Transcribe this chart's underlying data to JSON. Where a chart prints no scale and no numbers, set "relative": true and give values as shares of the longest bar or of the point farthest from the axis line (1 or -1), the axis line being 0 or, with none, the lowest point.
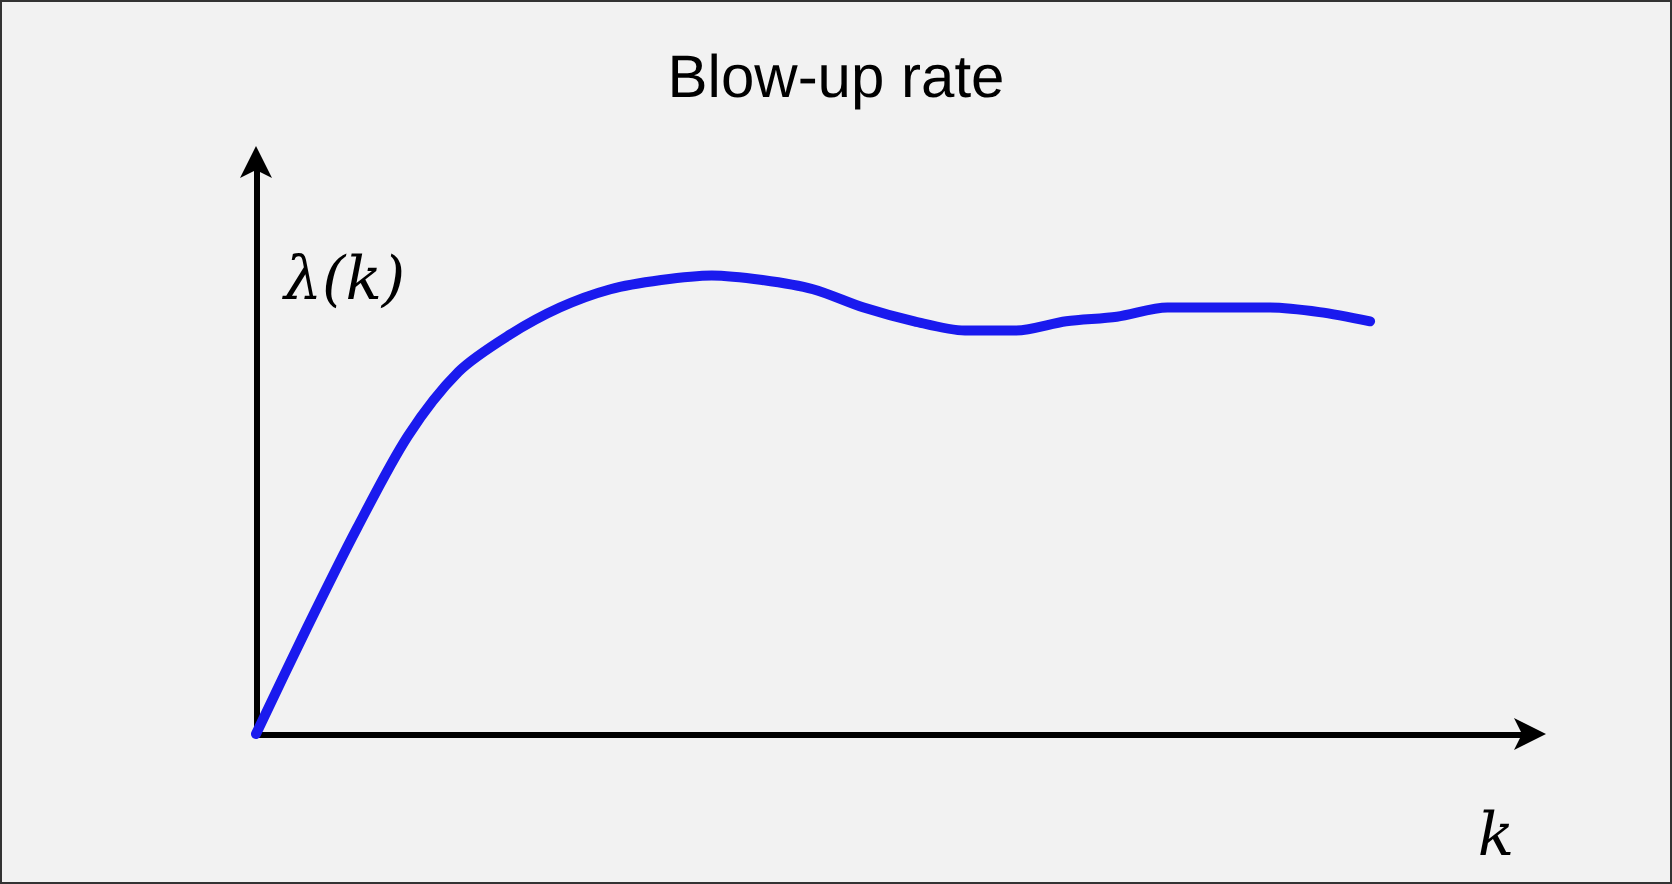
{
  "chart_data": {
    "type": "line",
    "title": "Blow-up rate",
    "xlabel": "k",
    "ylabel": "λ(k)",
    "relative": true,
    "marker": "none",
    "line_style": "solid",
    "color": "#1a1aee",
    "categories": [
      null,
      null,
      null,
      null,
      null,
      null,
      null,
      null,
      null,
      null,
      null,
      null,
      null,
      null,
      null,
      null,
      null,
      null,
      null,
      null,
      null,
      null,
      null,
      null,
      null,
      null
    ],
    "values": [
      0,
      0.23,
      0.45,
      0.65,
      0.79,
      0.87,
      0.93,
      0.97,
      0.99,
      1,
      0.99,
      0.97,
      0.93,
      0.9,
      0.88,
      0.88,
      0.9,
      0.91,
      0.93,
      0.93,
      0.93,
      0.92,
      0.9,
      null,
      null,
      null
    ]
  }
}
